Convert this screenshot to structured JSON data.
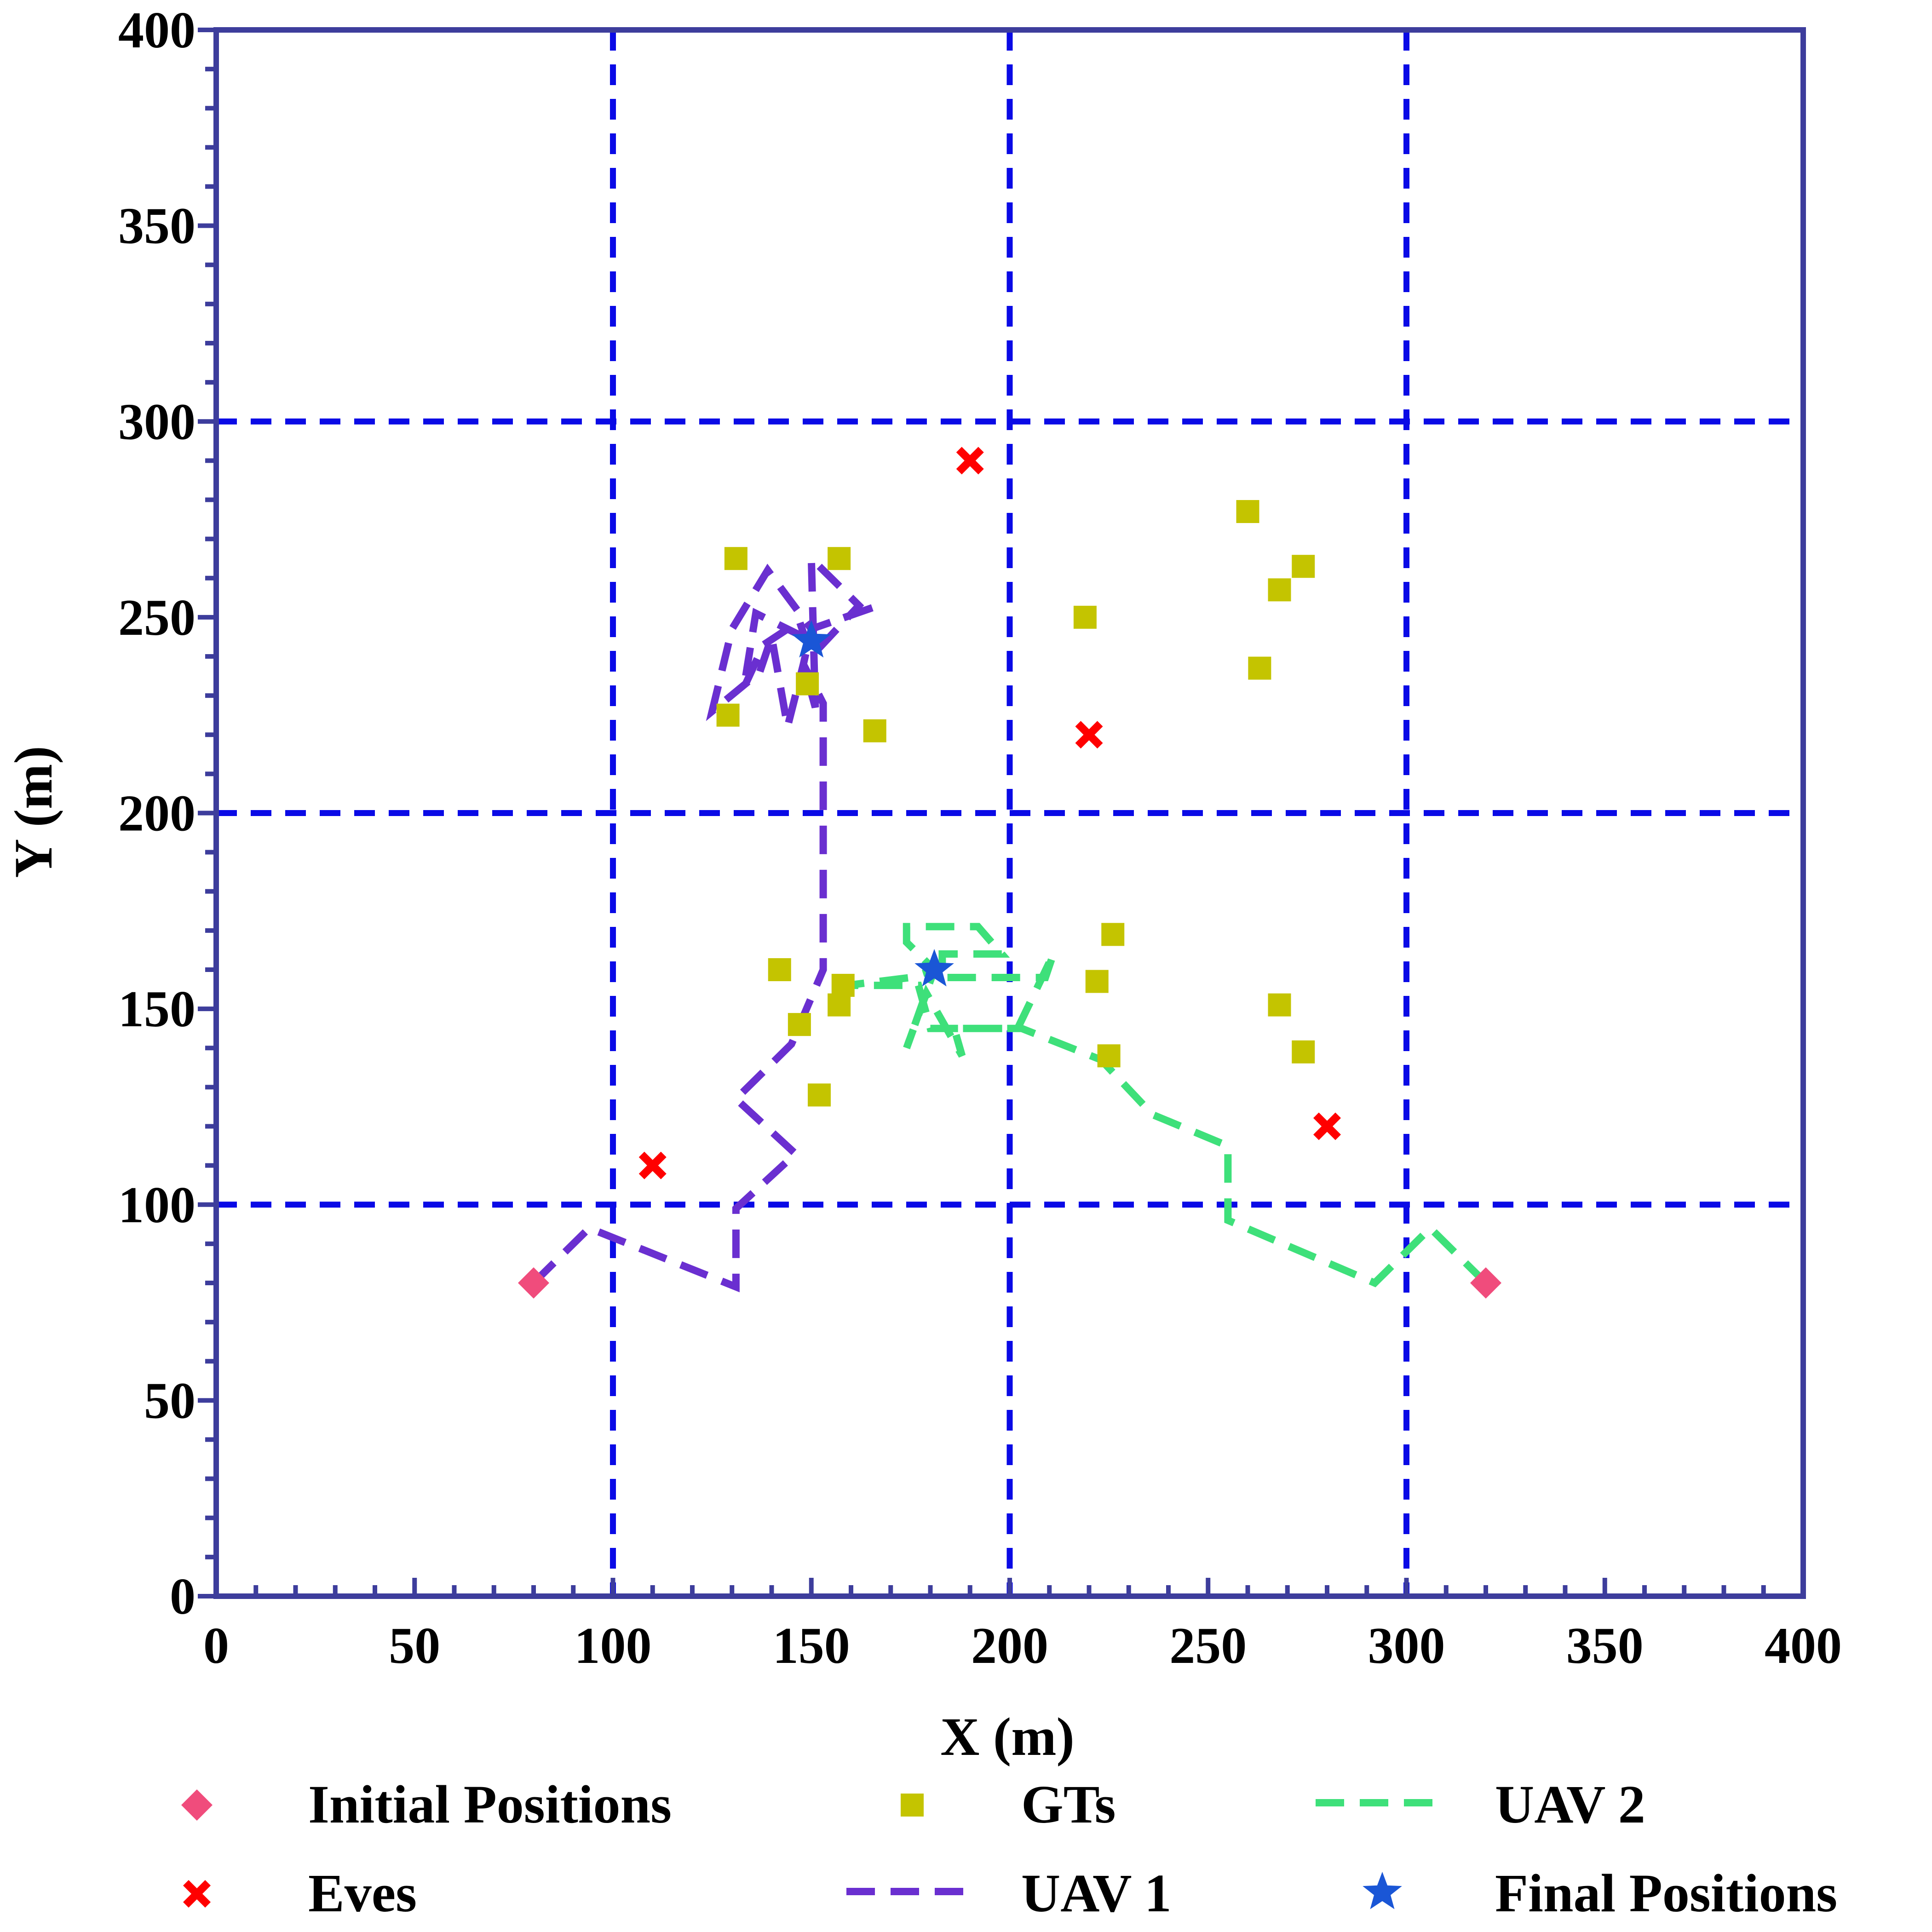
{
  "chart_data": {
    "type": "scatter",
    "xlabel": "X (m)",
    "ylabel": "Y (m)",
    "xlim": [
      0,
      400
    ],
    "ylim": [
      0,
      400
    ],
    "xticks": [
      "0",
      "50",
      "100",
      "150",
      "200",
      "250",
      "300",
      "350",
      "400"
    ],
    "yticks": [
      "0",
      "50",
      "100",
      "150",
      "200",
      "250",
      "300",
      "350",
      "400"
    ],
    "grid": "dashed lines every 100 m",
    "legend": "bottom, 3 columns",
    "colors": {
      "axes": "#3d3d9c",
      "grid": "#0a0ae6",
      "initial": "#f04c7c",
      "gts": "#c4c400",
      "eves": "#ff0000",
      "uav1": "#6a2fd0",
      "uav2": "#3ee07a",
      "final": "#1a56d6"
    },
    "series": [
      {
        "name": "Initial Positions",
        "marker": "diamond",
        "points": [
          [
            80,
            80
          ],
          [
            320,
            80
          ]
        ]
      },
      {
        "name": "GTs",
        "marker": "square",
        "points": [
          [
            131,
            265
          ],
          [
            157,
            265
          ],
          [
            129,
            225
          ],
          [
            149,
            233
          ],
          [
            166,
            221
          ],
          [
            219,
            250
          ],
          [
            260,
            277
          ],
          [
            274,
            263
          ],
          [
            268,
            257
          ],
          [
            263,
            237
          ],
          [
            142,
            160
          ],
          [
            147,
            146
          ],
          [
            158,
            156
          ],
          [
            157,
            151
          ],
          [
            152,
            128
          ],
          [
            226,
            169
          ],
          [
            222,
            157
          ],
          [
            225,
            138
          ],
          [
            268,
            151
          ],
          [
            274,
            139
          ]
        ]
      },
      {
        "name": "Eves",
        "marker": "x",
        "points": [
          [
            190,
            290
          ],
          [
            220,
            220
          ],
          [
            110,
            110
          ],
          [
            280,
            120
          ]
        ]
      },
      {
        "name": "UAV 1",
        "marker": "dashed-line",
        "points": [
          [
            80,
            80
          ],
          [
            94,
            94
          ],
          [
            131,
            79
          ],
          [
            131,
            99
          ],
          [
            146,
            113
          ],
          [
            131,
            127
          ],
          [
            145,
            141
          ],
          [
            153,
            160
          ],
          [
            153,
            228
          ],
          [
            148,
            238
          ],
          [
            150,
            247
          ],
          [
            167,
            253
          ],
          [
            150,
            247
          ],
          [
            139,
            262
          ],
          [
            130,
            247
          ],
          [
            125,
            226
          ],
          [
            137,
            236
          ],
          [
            140,
            245
          ],
          [
            144,
            222
          ],
          [
            148,
            238
          ],
          [
            151,
            227
          ],
          [
            150,
            265
          ],
          [
            162,
            253
          ],
          [
            150,
            240
          ],
          [
            147,
            249
          ],
          [
            138,
            243
          ],
          [
            133,
            232
          ],
          [
            136,
            251
          ],
          [
            150,
            244
          ]
        ]
      },
      {
        "name": "UAV 2",
        "marker": "dashed-line",
        "points": [
          [
            320,
            80
          ],
          [
            306,
            94
          ],
          [
            292,
            80
          ],
          [
            255,
            96
          ],
          [
            255,
            115
          ],
          [
            236,
            123
          ],
          [
            223,
            137
          ],
          [
            203,
            145
          ],
          [
            186,
            145
          ],
          [
            188,
            138
          ],
          [
            179,
            154
          ],
          [
            174,
            140
          ],
          [
            181,
            160
          ],
          [
            174,
            167
          ],
          [
            174,
            171
          ],
          [
            192,
            171
          ],
          [
            198,
            164
          ],
          [
            183,
            164
          ],
          [
            183,
            158
          ],
          [
            209,
            158
          ],
          [
            211,
            164
          ],
          [
            202,
            145
          ],
          [
            180,
            145
          ],
          [
            177,
            156
          ],
          [
            159,
            156
          ],
          [
            175,
            158
          ],
          [
            181,
            160
          ]
        ]
      },
      {
        "name": "Final Positions",
        "marker": "star",
        "points": [
          [
            150,
            244
          ],
          [
            181,
            160
          ]
        ]
      }
    ]
  }
}
